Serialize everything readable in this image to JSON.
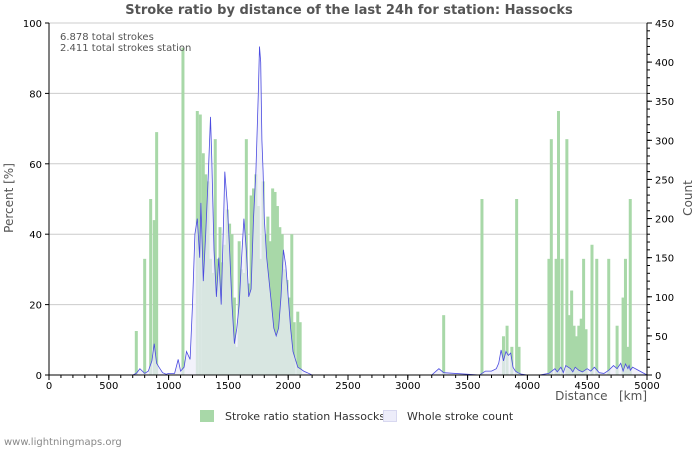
{
  "footer": "www.lightningmaps.org",
  "legend": {
    "ratio_label": "Stroke ratio station Hassocks",
    "count_label": "Whole stroke count"
  },
  "colors": {
    "bars": "#a8d8a8",
    "line": "#4a4ae0",
    "area": "#ededfa",
    "grid": "#cccccc",
    "axis": "#000000",
    "text": "#555555"
  },
  "chart_data": {
    "type": "bar",
    "title": "Stroke ratio by distance of the last 24h for station: Hassocks",
    "xlabel": "Distance   [km]",
    "ylabel_left": "Percent   [%]",
    "ylabel_right": "Count",
    "xlim": [
      0,
      5000
    ],
    "ylim_left": [
      0,
      100
    ],
    "ylim_right": [
      0,
      450
    ],
    "x_ticks": [
      0,
      500,
      1000,
      1500,
      2000,
      2500,
      3000,
      3500,
      4000,
      4500,
      5000
    ],
    "y_left_ticks": [
      0,
      20,
      40,
      60,
      80,
      100
    ],
    "y_right_ticks": [
      0,
      50,
      100,
      150,
      200,
      250,
      300,
      350,
      400,
      450
    ],
    "annotations": [
      "6.878 total strokes",
      "2.411 total strokes station"
    ],
    "series": [
      {
        "name": "Stroke ratio station Hassocks",
        "axis": "left",
        "kind": "bar",
        "x": [
          730,
          800,
          850,
          880,
          900,
          1120,
          1240,
          1265,
          1290,
          1310,
          1330,
          1350,
          1370,
          1390,
          1410,
          1430,
          1450,
          1470,
          1490,
          1510,
          1530,
          1550,
          1570,
          1590,
          1610,
          1630,
          1650,
          1670,
          1690,
          1710,
          1730,
          1750,
          1770,
          1790,
          1810,
          1830,
          1850,
          1870,
          1890,
          1910,
          1930,
          1950,
          1970,
          1990,
          2010,
          2030,
          2050,
          2080,
          2100,
          3300,
          3620,
          3800,
          3830,
          3870,
          3910,
          3930,
          4180,
          4200,
          4240,
          4260,
          4290,
          4330,
          4350,
          4370,
          4390,
          4410,
          4430,
          4450,
          4470,
          4490,
          4540,
          4580,
          4680,
          4750,
          4800,
          4820,
          4840,
          4860
        ],
        "values": [
          12.5,
          33,
          50,
          44,
          69,
          93,
          75,
          74,
          63,
          57,
          55,
          33,
          29,
          67,
          33,
          42,
          32,
          37,
          47,
          43,
          40,
          22,
          8,
          38,
          30,
          29,
          67,
          26,
          51,
          53,
          57,
          48,
          33,
          55,
          40,
          45,
          38,
          53,
          52,
          48,
          42,
          40,
          30,
          27,
          22,
          40,
          15,
          18,
          15,
          17,
          50,
          11,
          14,
          8,
          50,
          8,
          33,
          67,
          33,
          75,
          33,
          67,
          17,
          24,
          14,
          11,
          14,
          16,
          33,
          13,
          37,
          33,
          33,
          14,
          22,
          33,
          8,
          50
        ]
      },
      {
        "name": "Whole stroke count",
        "axis": "right",
        "kind": "line",
        "x": [
          0,
          700,
          730,
          760,
          800,
          830,
          860,
          880,
          900,
          920,
          950,
          980,
          1000,
          1050,
          1080,
          1100,
          1130,
          1150,
          1180,
          1200,
          1220,
          1240,
          1260,
          1270,
          1290,
          1310,
          1330,
          1350,
          1360,
          1380,
          1400,
          1420,
          1440,
          1460,
          1470,
          1490,
          1510,
          1530,
          1550,
          1570,
          1590,
          1610,
          1630,
          1650,
          1670,
          1690,
          1710,
          1730,
          1750,
          1760,
          1770,
          1780,
          1790,
          1800,
          1820,
          1840,
          1860,
          1880,
          1900,
          1920,
          1940,
          1960,
          1980,
          2000,
          2020,
          2040,
          2060,
          2080,
          2100,
          2130,
          2160,
          2200,
          3200,
          3260,
          3300,
          3600,
          3650,
          3700,
          3740,
          3760,
          3780,
          3800,
          3820,
          3840,
          3860,
          3880,
          3900,
          3920,
          3950,
          4000,
          4100,
          4180,
          4230,
          4250,
          4280,
          4300,
          4320,
          4360,
          4380,
          4400,
          4430,
          4460,
          4500,
          4530,
          4560,
          4600,
          4640,
          4680,
          4720,
          4750,
          4780,
          4800,
          4820,
          4840,
          4850,
          4860,
          4880,
          5000
        ],
        "values": [
          0,
          0,
          2,
          8,
          2,
          5,
          18,
          40,
          15,
          10,
          3,
          1,
          2,
          2,
          20,
          5,
          10,
          30,
          20,
          90,
          180,
          200,
          150,
          220,
          120,
          180,
          250,
          330,
          280,
          160,
          100,
          150,
          90,
          200,
          260,
          220,
          160,
          90,
          40,
          60,
          90,
          150,
          200,
          160,
          100,
          110,
          200,
          260,
          360,
          420,
          400,
          300,
          260,
          200,
          150,
          120,
          90,
          60,
          50,
          60,
          100,
          160,
          140,
          100,
          60,
          30,
          20,
          10,
          8,
          5,
          3,
          0,
          0,
          8,
          3,
          0,
          5,
          5,
          8,
          15,
          32,
          18,
          30,
          25,
          28,
          10,
          5,
          3,
          1,
          0,
          0,
          2,
          8,
          4,
          10,
          3,
          12,
          8,
          4,
          10,
          6,
          4,
          8,
          5,
          10,
          3,
          2,
          6,
          12,
          8,
          15,
          5,
          14,
          8,
          12,
          6,
          10,
          0
        ]
      }
    ]
  }
}
